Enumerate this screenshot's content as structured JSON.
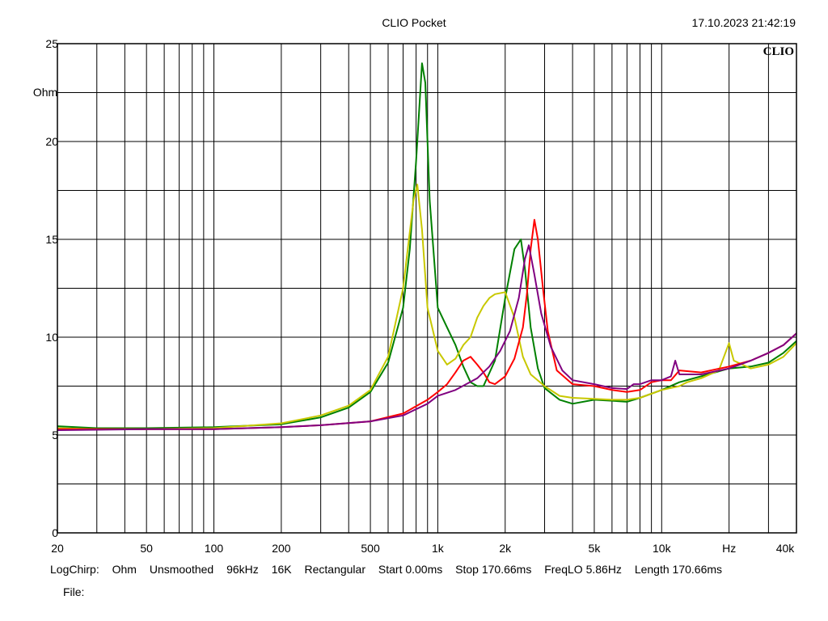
{
  "header": {
    "title": "CLIO Pocket",
    "timestamp": "17.10.2023 21:42:19",
    "logo": "CLIO"
  },
  "footer": {
    "items": [
      "LogChirp:",
      "Ohm",
      "Unsmoothed",
      "96kHz",
      "16K",
      "Rectangular",
      "Start 0.00ms",
      "Stop 170.66ms",
      "FreqLO 5.86Hz",
      "Length 170.66ms"
    ],
    "file_label": "File:"
  },
  "chart_data": {
    "type": "line",
    "x_scale": "log",
    "xlim": [
      20,
      40000
    ],
    "ylim": [
      0,
      25
    ],
    "ylabel": "Ohm",
    "xlabel": "Hz",
    "grid": true,
    "x_ticks": [
      {
        "value": 20,
        "label": "20"
      },
      {
        "value": 50,
        "label": "50"
      },
      {
        "value": 100,
        "label": "100"
      },
      {
        "value": 200,
        "label": "200"
      },
      {
        "value": 500,
        "label": "500"
      },
      {
        "value": 1000,
        "label": "1k"
      },
      {
        "value": 2000,
        "label": "2k"
      },
      {
        "value": 5000,
        "label": "5k"
      },
      {
        "value": 10000,
        "label": "10k"
      },
      {
        "value": 20000,
        "label": "Hz"
      },
      {
        "value": 40000,
        "label": "40k"
      }
    ],
    "y_ticks": [
      {
        "value": 0,
        "label": "0"
      },
      {
        "value": 5,
        "label": "5"
      },
      {
        "value": 10,
        "label": "10"
      },
      {
        "value": 15,
        "label": "15"
      },
      {
        "value": 20,
        "label": "20"
      },
      {
        "value": 25,
        "label": "25"
      }
    ],
    "series": [
      {
        "color": "#008000",
        "points": [
          [
            20,
            5.45
          ],
          [
            30,
            5.35
          ],
          [
            50,
            5.35
          ],
          [
            100,
            5.4
          ],
          [
            200,
            5.55
          ],
          [
            300,
            5.9
          ],
          [
            400,
            6.4
          ],
          [
            500,
            7.2
          ],
          [
            600,
            8.7
          ],
          [
            700,
            11.5
          ],
          [
            750,
            14.5
          ],
          [
            800,
            19.0
          ],
          [
            850,
            24.0
          ],
          [
            880,
            23.0
          ],
          [
            920,
            17.0
          ],
          [
            1000,
            11.5
          ],
          [
            1100,
            10.5
          ],
          [
            1200,
            9.6
          ],
          [
            1300,
            8.5
          ],
          [
            1400,
            7.7
          ],
          [
            1500,
            7.5
          ],
          [
            1600,
            7.5
          ],
          [
            1800,
            8.8
          ],
          [
            2000,
            12.0
          ],
          [
            2200,
            14.5
          ],
          [
            2350,
            15.0
          ],
          [
            2450,
            13.5
          ],
          [
            2600,
            10.5
          ],
          [
            2800,
            8.4
          ],
          [
            3000,
            7.4
          ],
          [
            3500,
            6.8
          ],
          [
            4000,
            6.6
          ],
          [
            5000,
            6.8
          ],
          [
            6000,
            6.75
          ],
          [
            7000,
            6.7
          ],
          [
            8000,
            6.9
          ],
          [
            10000,
            7.3
          ],
          [
            12000,
            7.7
          ],
          [
            15000,
            8.0
          ],
          [
            20000,
            8.4
          ],
          [
            25000,
            8.5
          ],
          [
            30000,
            8.7
          ],
          [
            35000,
            9.2
          ],
          [
            40000,
            9.8
          ]
        ]
      },
      {
        "color": "#c8c800",
        "points": [
          [
            20,
            5.35
          ],
          [
            30,
            5.3
          ],
          [
            50,
            5.3
          ],
          [
            100,
            5.35
          ],
          [
            200,
            5.6
          ],
          [
            300,
            6.0
          ],
          [
            400,
            6.5
          ],
          [
            500,
            7.3
          ],
          [
            600,
            9.0
          ],
          [
            700,
            12.5
          ],
          [
            780,
            17.0
          ],
          [
            810,
            17.8
          ],
          [
            850,
            15.5
          ],
          [
            900,
            11.5
          ],
          [
            1000,
            9.3
          ],
          [
            1100,
            8.6
          ],
          [
            1200,
            8.9
          ],
          [
            1300,
            9.6
          ],
          [
            1400,
            10.0
          ],
          [
            1500,
            11.0
          ],
          [
            1600,
            11.6
          ],
          [
            1700,
            12.0
          ],
          [
            1800,
            12.2
          ],
          [
            2000,
            12.3
          ],
          [
            2200,
            11.0
          ],
          [
            2400,
            9.0
          ],
          [
            2600,
            8.1
          ],
          [
            3000,
            7.5
          ],
          [
            3500,
            7.0
          ],
          [
            4000,
            6.9
          ],
          [
            5000,
            6.85
          ],
          [
            6000,
            6.8
          ],
          [
            7000,
            6.8
          ],
          [
            8000,
            6.9
          ],
          [
            10000,
            7.3
          ],
          [
            12000,
            7.5
          ],
          [
            13000,
            7.7
          ],
          [
            15000,
            7.9
          ],
          [
            18000,
            8.3
          ],
          [
            20000,
            9.7
          ],
          [
            21000,
            8.8
          ],
          [
            25000,
            8.4
          ],
          [
            30000,
            8.6
          ],
          [
            35000,
            9.0
          ],
          [
            40000,
            9.7
          ]
        ]
      },
      {
        "color": "#ff0000",
        "points": [
          [
            20,
            5.3
          ],
          [
            50,
            5.3
          ],
          [
            100,
            5.3
          ],
          [
            200,
            5.4
          ],
          [
            300,
            5.5
          ],
          [
            500,
            5.7
          ],
          [
            700,
            6.1
          ],
          [
            900,
            6.8
          ],
          [
            1000,
            7.2
          ],
          [
            1100,
            7.6
          ],
          [
            1200,
            8.2
          ],
          [
            1300,
            8.8
          ],
          [
            1400,
            9.0
          ],
          [
            1500,
            8.6
          ],
          [
            1600,
            8.2
          ],
          [
            1700,
            7.7
          ],
          [
            1800,
            7.6
          ],
          [
            2000,
            8.0
          ],
          [
            2200,
            8.9
          ],
          [
            2400,
            10.5
          ],
          [
            2500,
            12.2
          ],
          [
            2600,
            14.5
          ],
          [
            2700,
            16.0
          ],
          [
            2800,
            15.0
          ],
          [
            2950,
            12.5
          ],
          [
            3100,
            10.3
          ],
          [
            3400,
            8.3
          ],
          [
            4000,
            7.6
          ],
          [
            5000,
            7.5
          ],
          [
            6000,
            7.3
          ],
          [
            7000,
            7.2
          ],
          [
            8000,
            7.3
          ],
          [
            9000,
            7.7
          ],
          [
            10000,
            7.8
          ],
          [
            11000,
            7.8
          ],
          [
            12000,
            8.3
          ],
          [
            15000,
            8.2
          ],
          [
            20000,
            8.5
          ],
          [
            25000,
            8.8
          ],
          [
            30000,
            9.2
          ],
          [
            35000,
            9.6
          ],
          [
            40000,
            10.2
          ]
        ]
      },
      {
        "color": "#800080",
        "points": [
          [
            20,
            5.25
          ],
          [
            50,
            5.3
          ],
          [
            100,
            5.3
          ],
          [
            200,
            5.4
          ],
          [
            300,
            5.5
          ],
          [
            500,
            5.7
          ],
          [
            700,
            6.0
          ],
          [
            900,
            6.6
          ],
          [
            1000,
            7.0
          ],
          [
            1200,
            7.3
          ],
          [
            1500,
            7.9
          ],
          [
            1700,
            8.5
          ],
          [
            1900,
            9.3
          ],
          [
            2100,
            10.3
          ],
          [
            2300,
            12.0
          ],
          [
            2450,
            14.0
          ],
          [
            2550,
            14.7
          ],
          [
            2700,
            13.2
          ],
          [
            2900,
            11.2
          ],
          [
            3200,
            9.5
          ],
          [
            3600,
            8.3
          ],
          [
            4000,
            7.8
          ],
          [
            5000,
            7.6
          ],
          [
            6000,
            7.4
          ],
          [
            7000,
            7.35
          ],
          [
            7500,
            7.6
          ],
          [
            8000,
            7.6
          ],
          [
            9000,
            7.8
          ],
          [
            10000,
            7.8
          ],
          [
            11000,
            8.0
          ],
          [
            11500,
            8.8
          ],
          [
            12000,
            8.1
          ],
          [
            15000,
            8.1
          ],
          [
            20000,
            8.4
          ],
          [
            25000,
            8.8
          ],
          [
            30000,
            9.2
          ],
          [
            35000,
            9.6
          ],
          [
            40000,
            10.2
          ]
        ]
      }
    ]
  }
}
